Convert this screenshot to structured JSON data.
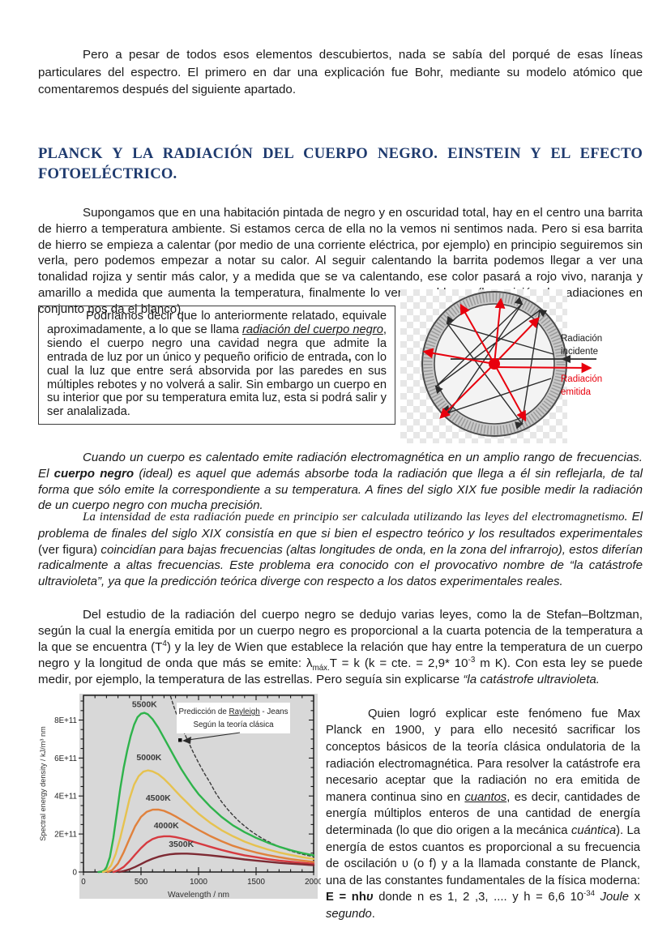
{
  "heading": {
    "text": "PLANCK Y LA RADIACIÓN DEL CUERPO NEGRO. EINSTEIN Y EL EFECTO FOTOELÉCTRICO.",
    "color": "#1e3a6e"
  },
  "paragraphs": {
    "p1": [
      {
        "t": "Pero a pesar de todos esos elementos descubiertos, nada se sabía del porqué de esas líneas particulares del espectro. El primero en dar una explicación fue Bohr, mediante su modelo atómico que comentaremos después del siguiente apartado."
      }
    ],
    "p2": [
      {
        "t": "Supongamos que en una habitación pintada de negro y en oscuridad total, hay en el centro una barrita de hierro a temperatura ambiente. Si estamos cerca de ella no la vemos ni sentimos nada. Pero si esa barrita de hierro se empieza a calentar (por medio de una corriente eléctrica, por ejemplo) en principio seguiremos sin verla, pero podemos empezar a notar su calor. Al seguir calentando la barrita podemos llegar a ver una tonalidad rojiza y sentir más calor, y  a medida que se va calentando, ese color pasará a rojo vivo, naranja y amarillo a medida que aumenta la temperatura, finalmente lo veremos blanco (la emisión de radiaciones en conjunto nos da el blanco)."
      }
    ],
    "box": [
      {
        "t": "Podríamos decir que lo anteriormente relatado, equivale aproximadamente, a lo que se llama "
      },
      {
        "t": "radiación del cuerpo negro",
        "s": "iu"
      },
      {
        "t": ", siendo el cuerpo negro una cavidad negra que admite la entrada de luz por un único y pequeño orificio de entrada"
      },
      {
        "t": ",",
        "s": "b"
      },
      {
        "t": " con lo cual la luz que entre será absorvida por las paredes en sus múltiples rebotes y no volverá a salir. Sin embargo un cuerpo en su interior que por su temperatura emita luz, esta si podrá salir y ser analalizada."
      }
    ],
    "p3": [
      {
        "t": "Cuando un cuerpo es calentado emite radiación electromagnética en un amplio rango de frecuencias. El "
      },
      {
        "t": "cuerpo negro",
        "s": "b"
      },
      {
        "t": " (ideal) es aquel que además absorbe toda la radiación que llega a él sin reflejarla, de tal forma que sólo emite la correspondiente a su temperatura. A fines del siglo XIX fue posible medir la radiación de un cuerpo negro con mucha precisión."
      }
    ],
    "p4": [
      {
        "t": "La intensidad de esta radiación puede en principio ser calculada utilizando las leyes del electromagnetismo.",
        "s": "serif"
      },
      {
        "t": "   El problema de finales del siglo XIX consistía en que si bien el espectro teórico y los resultados experimentales "
      },
      {
        "t": "(ver figura)",
        "s": "rm"
      },
      {
        "t": " coincidían para bajas frecuencias (altas longitudes de onda, en la zona del infrarrojo), estos diferían radicalmente a altas frecuencias. Este problema era conocido con el provocativo nombre de “la catástrofe ultravioleta”, ya que la predicción teórica diverge con respecto a los datos experimentales reales."
      }
    ],
    "p5": [
      {
        "t": "Del estudio de la radiación del cuerpo negro se dedujo varias leyes, como la de Stefan–Boltzman, según la cual la energía emitida por un cuerpo negro es proporcional a la cuarta potencia de la temperatura a la que se encuentra (T"
      },
      {
        "t": "4",
        "s": "sup"
      },
      {
        "t": ") y la ley de Wien que establece la relación que hay entre la temperatura de un cuerpo negro y la longitud de onda que más se emite: λ"
      },
      {
        "t": "máx.",
        "s": "sub"
      },
      {
        "t": "T = k (k = cte. = 2,9* 10"
      },
      {
        "t": "-3",
        "s": "sup"
      },
      {
        "t": " m K). Con esta ley se puede medir, por ejemplo, la temperatura de las estrellas. Pero seguía sin explicarse "
      },
      {
        "t": "“la catástrofe ultravioleta.",
        "s": "i"
      }
    ],
    "p6": [
      {
        "t": "Quien logró explicar este fenómeno fue Max Planck en 1900, y para ello necesitó sacrificar los conceptos básicos de la teoría clásica ondulatoria de la radiación electromagnética. Para resolver la catástrofe era necesario aceptar que la radiación no era emitida de manera continua sino en "
      },
      {
        "t": "cuantos",
        "s": "iu"
      },
      {
        "t": ", es decir, cantidades de energía múltiplos enteros de una cantidad de energía determinada (lo que dio origen a la mecánica "
      },
      {
        "t": "cuántica",
        "s": "i"
      },
      {
        "t": "). La energía de estos cuantos es proporcional a su frecuencia de oscilación υ (o f) y a la llamada constante de Planck, una de las constantes fundamentales de la física moderna: "
      },
      {
        "t": "E = nh",
        "s": "b"
      },
      {
        "t": "υ",
        "s": "bi"
      },
      {
        "t": " donde n es 1, 2 ,3, .... y  h = 6,6 10"
      },
      {
        "t": "-34",
        "s": "sup"
      },
      {
        "t": " "
      },
      {
        "t": "Joule",
        "s": "i"
      },
      {
        "t": " x ",
        "s": ""
      },
      {
        "t": "segundo",
        "s": "i"
      },
      {
        "t": ".",
        "s": ""
      }
    ]
  },
  "cavity_diagram": {
    "label_incident_line1": "Radiación",
    "label_incident_line2": "incidente",
    "label_emitted_line1": "Radiación",
    "label_emitted_line2": "emitida",
    "incident_color": "#1a1a1a",
    "emitted_color": "#e8000d"
  },
  "chart_data": {
    "type": "line",
    "xlabel": "Wavelength / nm",
    "ylabel": "Spectral energy density / kJ/m³ nm",
    "xlim": [
      0,
      2000
    ],
    "ylim_1e11": [
      0,
      9.3
    ],
    "y_scale": 100000000000.0,
    "x_ticks": [
      0,
      500,
      1000,
      1500,
      2000
    ],
    "x_minor_step": 100,
    "y_ticks_1e11": [
      0,
      2,
      4,
      6,
      8
    ],
    "y_tick_labels": [
      "0",
      "2E+11",
      "4E+11",
      "6E+11",
      "8E+11"
    ],
    "y_minor_step_1e11": 0.5,
    "grid": false,
    "plot_background": "#d8d8d8",
    "annotation": {
      "prefix": "Predicción de ",
      "underlined": "Rayleigh",
      "suffix": " - Jeans",
      "line2": "Según la teoría clásica"
    },
    "series": [
      {
        "name": "Rayleigh-Jeans (teoría clásica)",
        "color": "#3a3a3a",
        "dashed": true,
        "points": [
          [
            757,
            9.25
          ],
          [
            780,
            8.8
          ],
          [
            800,
            8.45
          ],
          [
            850,
            7.65
          ],
          [
            900,
            7.0
          ],
          [
            950,
            6.35
          ],
          [
            1000,
            5.75
          ],
          [
            1050,
            5.2
          ],
          [
            1100,
            4.7
          ],
          [
            1150,
            4.15
          ],
          [
            1200,
            3.7
          ],
          [
            1250,
            3.32
          ],
          [
            1300,
            2.98
          ],
          [
            1350,
            2.68
          ],
          [
            1400,
            2.42
          ],
          [
            1450,
            2.18
          ],
          [
            1500,
            1.97
          ],
          [
            1550,
            1.78
          ],
          [
            1600,
            1.62
          ],
          [
            1650,
            1.47
          ],
          [
            1700,
            1.34
          ],
          [
            1750,
            1.22
          ],
          [
            1800,
            1.11
          ],
          [
            1850,
            1.02
          ],
          [
            1900,
            0.94
          ],
          [
            1950,
            0.87
          ],
          [
            2000,
            0.81
          ]
        ]
      },
      {
        "name": "5500K",
        "color": "#2eb34b",
        "label_at": [
          530,
          8.55
        ],
        "points": [
          [
            130,
            0
          ],
          [
            160,
            0.02
          ],
          [
            180,
            0.08
          ],
          [
            200,
            0.25
          ],
          [
            230,
            0.8
          ],
          [
            260,
            1.8
          ],
          [
            290,
            3.1
          ],
          [
            320,
            4.4
          ],
          [
            350,
            5.5
          ],
          [
            380,
            6.4
          ],
          [
            410,
            7.15
          ],
          [
            440,
            7.75
          ],
          [
            470,
            8.15
          ],
          [
            500,
            8.33
          ],
          [
            530,
            8.38
          ],
          [
            560,
            8.3
          ],
          [
            600,
            8.05
          ],
          [
            650,
            7.6
          ],
          [
            700,
            7.05
          ],
          [
            750,
            6.5
          ],
          [
            800,
            5.95
          ],
          [
            850,
            5.42
          ],
          [
            900,
            4.95
          ],
          [
            950,
            4.5
          ],
          [
            1000,
            4.1
          ],
          [
            1100,
            3.45
          ],
          [
            1200,
            2.9
          ],
          [
            1300,
            2.45
          ],
          [
            1400,
            2.1
          ],
          [
            1500,
            1.8
          ],
          [
            1600,
            1.55
          ],
          [
            1700,
            1.33
          ],
          [
            1800,
            1.15
          ],
          [
            1900,
            1.0
          ],
          [
            2000,
            0.88
          ]
        ]
      },
      {
        "name": "5000K",
        "color": "#e6c24f",
        "label_at": [
          570,
          5.75
        ],
        "points": [
          [
            170,
            0
          ],
          [
            200,
            0.06
          ],
          [
            240,
            0.35
          ],
          [
            280,
            0.95
          ],
          [
            320,
            1.8
          ],
          [
            360,
            2.8
          ],
          [
            400,
            3.85
          ],
          [
            440,
            4.6
          ],
          [
            480,
            5.05
          ],
          [
            520,
            5.28
          ],
          [
            560,
            5.35
          ],
          [
            600,
            5.3
          ],
          [
            650,
            5.15
          ],
          [
            700,
            4.9
          ],
          [
            750,
            4.6
          ],
          [
            800,
            4.27
          ],
          [
            850,
            3.95
          ],
          [
            900,
            3.65
          ],
          [
            950,
            3.35
          ],
          [
            1000,
            3.07
          ],
          [
            1100,
            2.6
          ],
          [
            1200,
            2.2
          ],
          [
            1300,
            1.88
          ],
          [
            1400,
            1.6
          ],
          [
            1500,
            1.38
          ],
          [
            1600,
            1.19
          ],
          [
            1700,
            1.03
          ],
          [
            1800,
            0.9
          ],
          [
            1900,
            0.78
          ],
          [
            2000,
            0.69
          ]
        ]
      },
      {
        "name": "4500K",
        "color": "#e0813c",
        "label_at": [
          650,
          3.62
        ],
        "points": [
          [
            210,
            0
          ],
          [
            250,
            0.1
          ],
          [
            300,
            0.45
          ],
          [
            350,
            1.05
          ],
          [
            400,
            1.75
          ],
          [
            450,
            2.42
          ],
          [
            500,
            2.9
          ],
          [
            550,
            3.17
          ],
          [
            600,
            3.28
          ],
          [
            650,
            3.29
          ],
          [
            700,
            3.22
          ],
          [
            750,
            3.09
          ],
          [
            800,
            2.93
          ],
          [
            850,
            2.75
          ],
          [
            900,
            2.57
          ],
          [
            950,
            2.39
          ],
          [
            1000,
            2.22
          ],
          [
            1100,
            1.9
          ],
          [
            1200,
            1.62
          ],
          [
            1300,
            1.38
          ],
          [
            1400,
            1.19
          ],
          [
            1500,
            1.03
          ],
          [
            1600,
            0.89
          ],
          [
            1700,
            0.78
          ],
          [
            1800,
            0.68
          ],
          [
            1900,
            0.6
          ],
          [
            2000,
            0.53
          ]
        ]
      },
      {
        "name": "4000K",
        "color": "#d63a40",
        "label_at": [
          720,
          2.18
        ],
        "points": [
          [
            260,
            0
          ],
          [
            300,
            0.08
          ],
          [
            350,
            0.27
          ],
          [
            400,
            0.57
          ],
          [
            450,
            0.92
          ],
          [
            500,
            1.26
          ],
          [
            550,
            1.54
          ],
          [
            600,
            1.73
          ],
          [
            650,
            1.84
          ],
          [
            700,
            1.88
          ],
          [
            750,
            1.88
          ],
          [
            800,
            1.84
          ],
          [
            850,
            1.77
          ],
          [
            900,
            1.69
          ],
          [
            950,
            1.6
          ],
          [
            1000,
            1.51
          ],
          [
            1100,
            1.33
          ],
          [
            1200,
            1.16
          ],
          [
            1300,
            1.01
          ],
          [
            1400,
            0.88
          ],
          [
            1500,
            0.78
          ],
          [
            1600,
            0.68
          ],
          [
            1700,
            0.6
          ],
          [
            1800,
            0.54
          ],
          [
            1900,
            0.48
          ],
          [
            2000,
            0.43
          ]
        ]
      },
      {
        "name": "3500K",
        "color": "#7d2a33",
        "label_at": [
          850,
          1.2
        ],
        "points": [
          [
            310,
            0
          ],
          [
            350,
            0.05
          ],
          [
            400,
            0.14
          ],
          [
            450,
            0.27
          ],
          [
            500,
            0.42
          ],
          [
            550,
            0.57
          ],
          [
            600,
            0.7
          ],
          [
            650,
            0.8
          ],
          [
            700,
            0.88
          ],
          [
            750,
            0.93
          ],
          [
            800,
            0.96
          ],
          [
            850,
            0.97
          ],
          [
            900,
            0.97
          ],
          [
            950,
            0.95
          ],
          [
            1000,
            0.93
          ],
          [
            1100,
            0.88
          ],
          [
            1200,
            0.81
          ],
          [
            1300,
            0.74
          ],
          [
            1400,
            0.66
          ],
          [
            1500,
            0.6
          ],
          [
            1600,
            0.54
          ],
          [
            1700,
            0.48
          ],
          [
            1800,
            0.44
          ],
          [
            1900,
            0.4
          ],
          [
            2000,
            0.36
          ]
        ]
      }
    ]
  }
}
